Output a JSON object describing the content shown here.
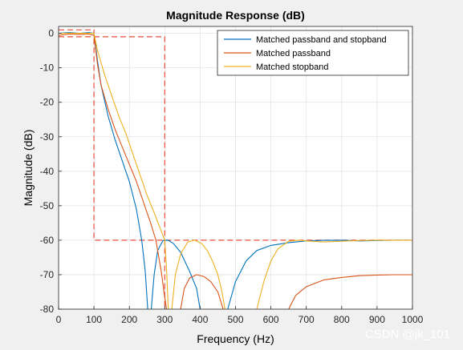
{
  "chart_data": {
    "type": "line",
    "title": "Magnitude Response (dB)",
    "xlabel": "Frequency (Hz)",
    "ylabel": "Magnitude (dB)",
    "xlim": [
      0,
      1000
    ],
    "ylim": [
      -80,
      2
    ],
    "x_ticks": [
      0,
      100,
      200,
      300,
      400,
      500,
      600,
      700,
      800,
      900,
      1000
    ],
    "y_ticks": [
      0,
      -10,
      -20,
      -30,
      -40,
      -50,
      -60,
      -70,
      -80
    ],
    "grid": true,
    "legend_position": "top-right",
    "series": [
      {
        "name": "Matched passband and stopband",
        "color": "#0072BD",
        "segments": [
          [
            [
              0,
              0
            ],
            [
              30,
              0.2
            ],
            [
              60,
              0
            ],
            [
              85,
              0.2
            ],
            [
              100,
              0
            ],
            [
              110,
              -8
            ],
            [
              120,
              -15
            ],
            [
              140,
              -24
            ],
            [
              160,
              -31
            ],
            [
              180,
              -37
            ],
            [
              200,
              -43
            ],
            [
              220,
              -51
            ],
            [
              235,
              -60
            ],
            [
              245,
              -69
            ],
            [
              252,
              -80
            ]
          ],
          [
            [
              262,
              -80
            ],
            [
              270,
              -70
            ],
            [
              280,
              -63
            ],
            [
              295,
              -60.1
            ],
            [
              310,
              -60
            ],
            [
              325,
              -61
            ],
            [
              345,
              -63.5
            ],
            [
              370,
              -69
            ],
            [
              390,
              -74
            ],
            [
              400,
              -80
            ]
          ],
          [
            [
              478,
              -80
            ],
            [
              500,
              -72
            ],
            [
              530,
              -66
            ],
            [
              560,
              -63
            ],
            [
              600,
              -61.5
            ],
            [
              650,
              -60.7
            ],
            [
              700,
              -60.2
            ],
            [
              750,
              -60.05
            ],
            [
              800,
              -60
            ],
            [
              850,
              -60.2
            ],
            [
              900,
              -60.1
            ],
            [
              950,
              -60
            ],
            [
              1000,
              -60
            ]
          ]
        ]
      },
      {
        "name": "Matched passband",
        "color": "#D95319",
        "segments": [
          [
            [
              0,
              -0.6
            ],
            [
              30,
              -0.2
            ],
            [
              60,
              -0.3
            ],
            [
              85,
              -0.2
            ],
            [
              100,
              -0.6
            ],
            [
              110,
              -9
            ],
            [
              120,
              -15
            ],
            [
              140,
              -22
            ],
            [
              160,
              -28
            ],
            [
              180,
              -33
            ],
            [
              200,
              -38
            ],
            [
              220,
              -43
            ],
            [
              240,
              -49
            ],
            [
              260,
              -55
            ],
            [
              275,
              -60
            ],
            [
              290,
              -69
            ],
            [
              298,
              -75
            ],
            [
              305,
              -80
            ]
          ],
          [
            [
              345,
              -80
            ],
            [
              355,
              -74
            ],
            [
              370,
              -71
            ],
            [
              390,
              -70
            ],
            [
              410,
              -70.5
            ],
            [
              430,
              -72
            ],
            [
              450,
              -75
            ],
            [
              465,
              -80
            ]
          ],
          [
            [
              650,
              -80
            ],
            [
              670,
              -76
            ],
            [
              700,
              -73.5
            ],
            [
              750,
              -71.5
            ],
            [
              800,
              -70.8
            ],
            [
              850,
              -70.3
            ],
            [
              900,
              -70.1
            ],
            [
              950,
              -70
            ],
            [
              1000,
              -70
            ]
          ]
        ]
      },
      {
        "name": "Matched stopband",
        "color": "#EDB120",
        "segments": [
          [
            [
              0,
              0
            ],
            [
              30,
              0
            ],
            [
              60,
              0
            ],
            [
              85,
              0
            ],
            [
              100,
              0
            ],
            [
              110,
              -5
            ],
            [
              130,
              -12
            ],
            [
              150,
              -18
            ],
            [
              170,
              -24
            ],
            [
              190,
              -29
            ],
            [
              210,
              -35
            ],
            [
              230,
              -41
            ],
            [
              250,
              -47
            ],
            [
              270,
              -52
            ],
            [
              285,
              -56
            ],
            [
              300,
              -60
            ],
            [
              305,
              -68
            ],
            [
              310,
              -80
            ]
          ],
          [
            [
              320,
              -80
            ],
            [
              330,
              -70
            ],
            [
              345,
              -64
            ],
            [
              365,
              -60.5
            ],
            [
              385,
              -60
            ],
            [
              405,
              -61
            ],
            [
              420,
              -63
            ],
            [
              435,
              -66
            ],
            [
              450,
              -70
            ],
            [
              462,
              -75
            ],
            [
              470,
              -80
            ]
          ],
          [
            [
              560,
              -80
            ],
            [
              580,
              -72
            ],
            [
              600,
              -66
            ],
            [
              620,
              -62.5
            ],
            [
              650,
              -60.3
            ],
            [
              680,
              -60
            ],
            [
              700,
              -60.2
            ],
            [
              750,
              -60.5
            ],
            [
              800,
              -60.3
            ],
            [
              850,
              -60.1
            ],
            [
              900,
              -60
            ],
            [
              950,
              -60
            ],
            [
              1000,
              -60
            ]
          ]
        ]
      }
    ],
    "spec_mask": {
      "color": "#E84B3C",
      "dashed": true,
      "lines": [
        [
          [
            0,
            -1
          ],
          [
            300,
            -1
          ],
          [
            300,
            -80
          ]
        ],
        [
          [
            0,
            1
          ],
          [
            100,
            1
          ],
          [
            100,
            -60
          ],
          [
            1000,
            -60
          ]
        ]
      ]
    }
  },
  "watermark": "CSDN @jk_101"
}
